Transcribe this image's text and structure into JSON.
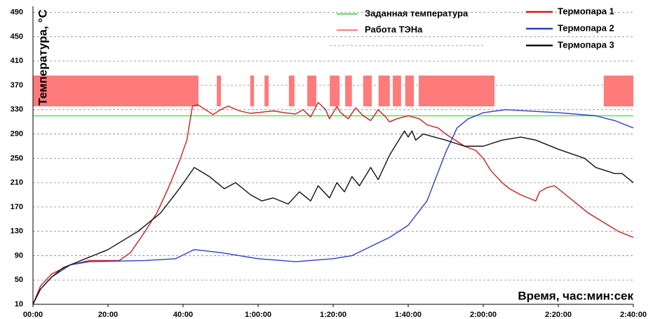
{
  "chart_data": {
    "type": "line",
    "y_label": "Температура, °C",
    "x_label": "Время, час:мин:сек",
    "xlim": [
      0,
      160
    ],
    "ylim": [
      10,
      500
    ],
    "yticks": [
      10,
      50,
      90,
      130,
      170,
      210,
      250,
      290,
      330,
      370,
      410,
      450,
      490
    ],
    "xticks": [
      {
        "value": 0,
        "label": "00:00"
      },
      {
        "value": 20,
        "label": "20:00"
      },
      {
        "value": 40,
        "label": "40:00"
      },
      {
        "value": 60,
        "label": "1:00:00"
      },
      {
        "value": 80,
        "label": "1:20:00"
      },
      {
        "value": 100,
        "label": "1:40:00"
      },
      {
        "value": 120,
        "label": "2:00:00"
      },
      {
        "value": 140,
        "label": "2:20:00"
      },
      {
        "value": 160,
        "label": "2:40:00"
      }
    ],
    "grid": true,
    "setpoint": {
      "name": "Заданная температура",
      "color": "#6fd46f",
      "value": 320
    },
    "heater": {
      "name": "Работа ТЭНа",
      "color": "#ff7b7b",
      "intervals": [
        [
          0,
          44.1
        ],
        [
          49,
          50.1
        ],
        [
          57.9,
          58.9
        ],
        [
          61.7,
          62.8
        ],
        [
          68.2,
          69.7
        ],
        [
          73.1,
          75.5
        ],
        [
          79.1,
          81.7
        ],
        [
          83.2,
          85
        ],
        [
          88,
          90.3
        ],
        [
          92.1,
          95.1
        ],
        [
          95.9,
          98.1
        ],
        [
          99.2,
          101.5
        ],
        [
          102.8,
          123
        ],
        [
          152.1,
          160
        ]
      ]
    },
    "series": [
      {
        "name": "Термопара 1",
        "color": "#c42020",
        "x": [
          0,
          2,
          5,
          10,
          15,
          20,
          23,
          26,
          30,
          33,
          36,
          39,
          41,
          42.5,
          44,
          46,
          48,
          50,
          52,
          55,
          58,
          61,
          64,
          67,
          70,
          72,
          74,
          76,
          78,
          79,
          81,
          82,
          84,
          86,
          88,
          90,
          92,
          94,
          95,
          97,
          100,
          103,
          105,
          108,
          110,
          113,
          115,
          118,
          120,
          122,
          125,
          127,
          130,
          132,
          134,
          135,
          137,
          139,
          142,
          145,
          148,
          152,
          156,
          160
        ],
        "values": [
          10,
          40,
          60,
          75,
          82,
          82,
          82,
          95,
          131,
          160,
          200,
          245,
          280,
          336,
          338,
          330,
          322,
          330,
          336,
          328,
          324,
          326,
          328,
          325,
          323,
          330,
          318,
          342,
          330,
          315,
          335,
          325,
          315,
          333,
          320,
          312,
          330,
          318,
          310,
          315,
          320,
          315,
          305,
          300,
          290,
          278,
          270,
          263,
          250,
          230,
          210,
          200,
          190,
          185,
          180,
          195,
          202,
          205,
          190,
          175,
          160,
          145,
          130,
          120
        ]
      },
      {
        "name": "Термопара 2",
        "color": "#2a3fc0",
        "x": [
          0,
          2,
          5,
          10,
          15,
          30,
          38,
          43,
          50,
          60,
          70,
          80,
          85,
          90,
          95,
          100,
          105,
          110,
          113,
          116,
          120,
          126,
          140,
          150,
          155,
          160
        ],
        "values": [
          10,
          35,
          55,
          75,
          80,
          82,
          85,
          100,
          95,
          85,
          80,
          85,
          90,
          105,
          120,
          140,
          180,
          260,
          300,
          315,
          325,
          330,
          325,
          320,
          312,
          300
        ]
      },
      {
        "name": "Термопара 3",
        "color": "#111111",
        "x": [
          0,
          2,
          5,
          8,
          12,
          20,
          28,
          34,
          39,
          43,
          47,
          51,
          54,
          58,
          61,
          64,
          68,
          71,
          74,
          76,
          79,
          81,
          83,
          85,
          87,
          90,
          92,
          95,
          99,
          100,
          101,
          102,
          104,
          110,
          115,
          120,
          125,
          130,
          134,
          140,
          147,
          150,
          155,
          157,
          160
        ],
        "values": [
          10,
          35,
          55,
          70,
          80,
          100,
          130,
          160,
          200,
          235,
          220,
          200,
          210,
          190,
          180,
          185,
          175,
          195,
          180,
          205,
          185,
          210,
          195,
          220,
          205,
          235,
          215,
          255,
          295,
          285,
          295,
          280,
          290,
          280,
          270,
          270,
          280,
          285,
          280,
          265,
          250,
          235,
          225,
          225,
          210
        ]
      }
    ]
  }
}
